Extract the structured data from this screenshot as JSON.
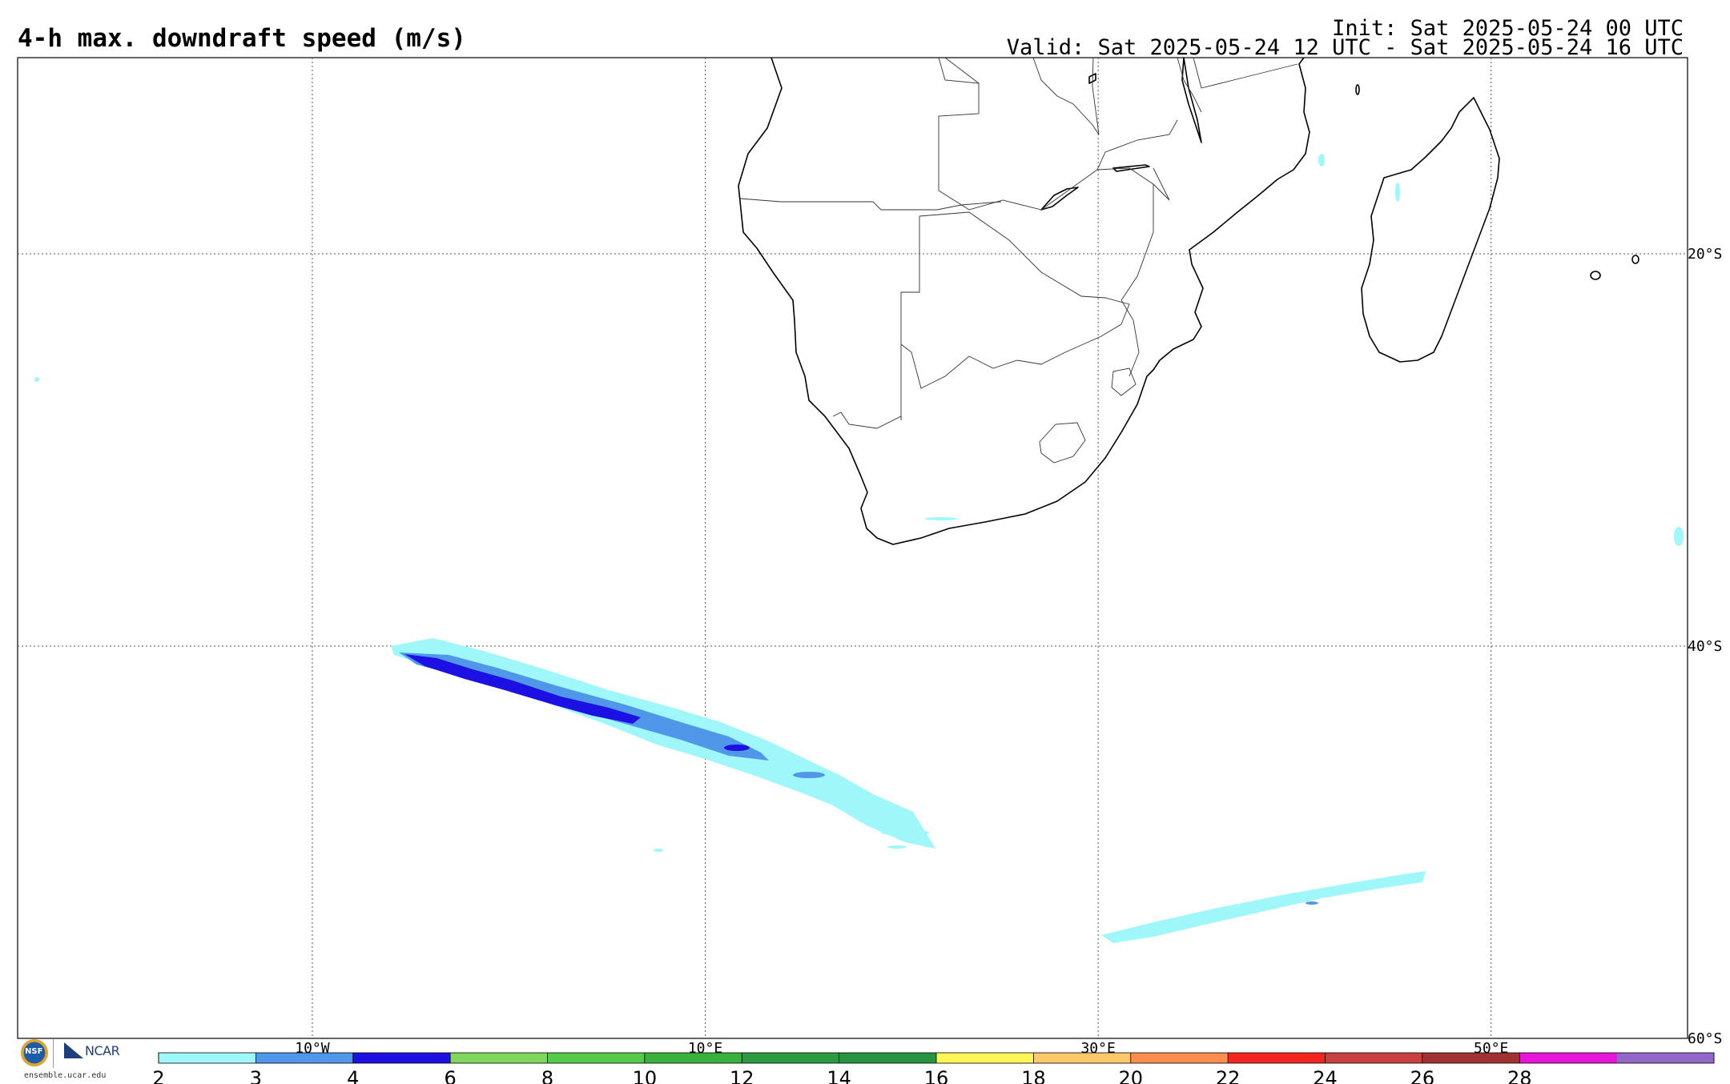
{
  "header": {
    "title": "4-h max. downdraft speed (m/s)",
    "init": "Init: Sat 2025-05-24 00 UTC",
    "valid": "Valid: Sat 2025-05-24 12 UTC - Sat 2025-05-24 16 UTC"
  },
  "map": {
    "lon_range": [
      -25,
      60
    ],
    "lat_range": [
      -60,
      -10
    ],
    "lon_labels": [
      {
        "lon": -10,
        "text": "10°W"
      },
      {
        "lon": 10,
        "text": "10°E"
      },
      {
        "lon": 30,
        "text": "30°E"
      },
      {
        "lon": 50,
        "text": "50°E"
      }
    ],
    "lat_labels": [
      {
        "lat": -20,
        "text": "20°S"
      },
      {
        "lat": -40,
        "text": "40°S"
      },
      {
        "lat": -60,
        "text": "60°S"
      }
    ],
    "colorbar": {
      "ticks": [
        "2",
        "3",
        "4",
        "6",
        "8",
        "10",
        "12",
        "14",
        "16",
        "18",
        "20",
        "22",
        "24",
        "26",
        "28"
      ],
      "colors": [
        "#9ff7fa",
        "#5097e9",
        "#1c10e3",
        "#7fd65c",
        "#55c94a",
        "#38b23d",
        "#2c9a40",
        "#269440",
        "#fdf658",
        "#fdc76b",
        "#fb8d4f",
        "#f3261f",
        "#c84040",
        "#a13232",
        "#e715d8",
        "#9168c7"
      ]
    }
  },
  "logo": {
    "org": "NCAR",
    "nsf": "NSF",
    "site": "ensemble.ucar.edu"
  }
}
